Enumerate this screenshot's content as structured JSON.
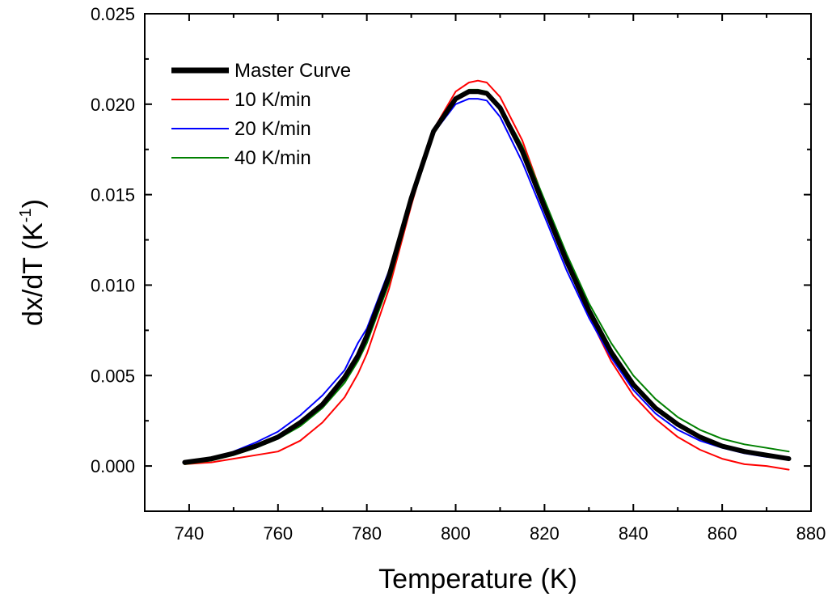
{
  "chart_data": {
    "type": "line",
    "title": "",
    "xlabel": "Temperature (K)",
    "ylabel_main": "dx/dT (K",
    "ylabel_sup": "-1",
    "ylabel_close": ")",
    "xlim": [
      730,
      880
    ],
    "ylim": [
      -0.0025,
      0.025
    ],
    "xticks": [
      740,
      760,
      780,
      800,
      820,
      840,
      860,
      880
    ],
    "xtick_labels": [
      "740",
      "760",
      "780",
      "800",
      "820",
      "840",
      "860",
      "880"
    ],
    "yticks": [
      0.0,
      0.005,
      0.01,
      0.015,
      0.02,
      0.025
    ],
    "ytick_labels": [
      "0.000",
      "0.005",
      "0.010",
      "0.015",
      "0.020",
      "0.025"
    ],
    "legend_position": "top-left",
    "grid": false,
    "series": [
      {
        "name": "Master Curve",
        "color": "#000000",
        "style": "thick",
        "x": [
          739,
          745,
          750,
          755,
          760,
          765,
          770,
          775,
          778,
          780,
          785,
          790,
          795,
          800,
          803,
          805,
          807,
          810,
          815,
          820,
          825,
          830,
          835,
          840,
          845,
          850,
          855,
          860,
          865,
          870,
          875
        ],
        "y": [
          0.0002,
          0.0004,
          0.0007,
          0.0011,
          0.0016,
          0.0024,
          0.0034,
          0.0049,
          0.0061,
          0.0072,
          0.0105,
          0.0148,
          0.0185,
          0.0203,
          0.0207,
          0.0207,
          0.0206,
          0.0198,
          0.0174,
          0.0143,
          0.0113,
          0.0086,
          0.0063,
          0.0045,
          0.0032,
          0.0023,
          0.0016,
          0.0011,
          0.0008,
          0.0006,
          0.0004
        ]
      },
      {
        "name": "10 K/min",
        "color": "#ff0000",
        "style": "thin",
        "x": [
          739,
          745,
          750,
          755,
          760,
          765,
          770,
          775,
          778,
          780,
          785,
          790,
          795,
          800,
          803,
          805,
          807,
          810,
          815,
          820,
          825,
          830,
          835,
          840,
          845,
          850,
          855,
          860,
          865,
          870,
          875
        ],
        "y": [
          0.0001,
          0.0002,
          0.0004,
          0.0006,
          0.0008,
          0.0014,
          0.0024,
          0.0038,
          0.0051,
          0.0062,
          0.0098,
          0.0144,
          0.0186,
          0.0207,
          0.0212,
          0.0213,
          0.0212,
          0.0204,
          0.018,
          0.0146,
          0.0112,
          0.0083,
          0.0058,
          0.0039,
          0.0026,
          0.0016,
          0.0009,
          0.0004,
          0.0001,
          0.0,
          -0.0002
        ]
      },
      {
        "name": "20 K/min",
        "color": "#0000ff",
        "style": "thin",
        "x": [
          739,
          745,
          750,
          755,
          760,
          765,
          770,
          775,
          778,
          780,
          785,
          790,
          795,
          800,
          803,
          805,
          807,
          810,
          815,
          820,
          825,
          830,
          835,
          840,
          845,
          850,
          855,
          860,
          865,
          870,
          875
        ],
        "y": [
          0.0002,
          0.0004,
          0.0008,
          0.0013,
          0.0019,
          0.0028,
          0.0039,
          0.0053,
          0.0068,
          0.0076,
          0.0108,
          0.015,
          0.0184,
          0.02,
          0.0203,
          0.0203,
          0.0202,
          0.0193,
          0.0168,
          0.0138,
          0.0108,
          0.0082,
          0.006,
          0.0042,
          0.0029,
          0.002,
          0.0014,
          0.001,
          0.0007,
          0.0005,
          0.0004
        ]
      },
      {
        "name": "40 K/min",
        "color": "#008000",
        "style": "thin",
        "x": [
          739,
          745,
          750,
          755,
          760,
          765,
          770,
          775,
          778,
          780,
          785,
          790,
          795,
          800,
          803,
          805,
          807,
          810,
          815,
          820,
          825,
          830,
          835,
          840,
          845,
          850,
          855,
          860,
          865,
          870,
          875
        ],
        "y": [
          0.0001,
          0.0003,
          0.0006,
          0.001,
          0.0015,
          0.0022,
          0.0032,
          0.0046,
          0.0058,
          0.0068,
          0.0101,
          0.0145,
          0.0184,
          0.0204,
          0.0208,
          0.0208,
          0.0207,
          0.0199,
          0.0177,
          0.0147,
          0.0117,
          0.009,
          0.0068,
          0.005,
          0.0037,
          0.0027,
          0.002,
          0.0015,
          0.0012,
          0.001,
          0.0008
        ]
      }
    ]
  }
}
